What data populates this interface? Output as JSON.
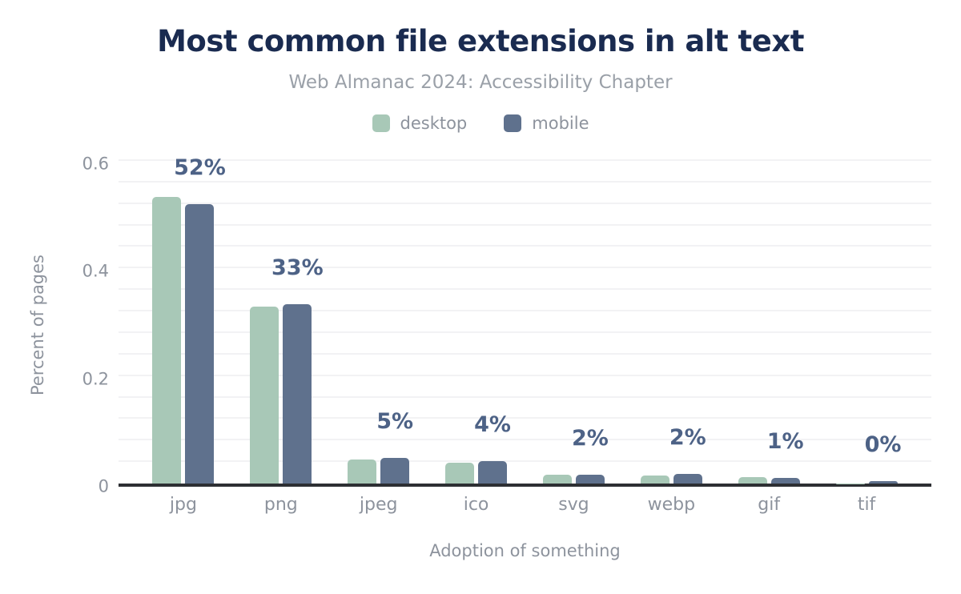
{
  "chart_data": {
    "type": "bar",
    "title": "Most common file extensions in alt text",
    "subtitle": "Web Almanac 2024: Accessibility Chapter",
    "xlabel": "Adoption of something",
    "ylabel": "Percent of pages",
    "ylim": [
      0,
      0.6
    ],
    "grid": {
      "interval": 0.04,
      "on": true
    },
    "legend_position": "top",
    "categories": [
      "jpg",
      "png",
      "jpeg",
      "ico",
      "svg",
      "webp",
      "gif",
      "tif"
    ],
    "series": [
      {
        "name": "desktop",
        "color": "#a8c8b7",
        "values": [
          0.533,
          0.329,
          0.045,
          0.038,
          0.017,
          0.015,
          0.012,
          0.0005
        ]
      },
      {
        "name": "mobile",
        "color": "#5f718d",
        "values": [
          0.519,
          0.333,
          0.047,
          0.041,
          0.017,
          0.018,
          0.011,
          0.004
        ]
      }
    ],
    "value_labels": [
      "52%",
      "33%",
      "5%",
      "4%",
      "2%",
      "2%",
      "1%",
      "0%"
    ],
    "value_label_anchor": "mobile",
    "yticks": [
      {
        "value": 0,
        "label": "0"
      },
      {
        "value": 0.2,
        "label": "0.2"
      },
      {
        "value": 0.4,
        "label": "0.4"
      },
      {
        "value": 0.6,
        "label": "0.6"
      }
    ],
    "colors": {
      "title": "#1a2b50",
      "subtitle": "#9aa0a8",
      "axis_text": "#8d939d",
      "value_label": "#4d6286",
      "gridline": "#f2f2f4",
      "baseline": "#2d2f33",
      "desktop": "#a8c8b7",
      "mobile": "#5f718d"
    }
  }
}
